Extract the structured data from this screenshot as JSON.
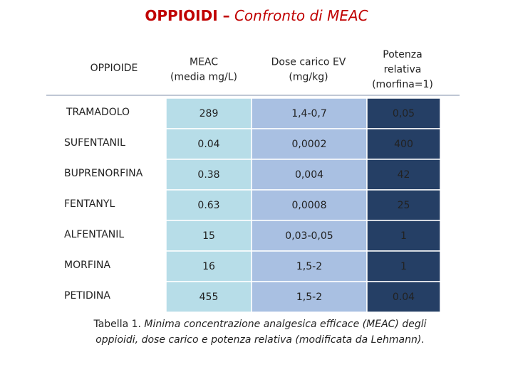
{
  "title": {
    "bold": "OPPIOIDI –",
    "italic": "Confronto di MEAC"
  },
  "table": {
    "header": [
      [
        "OPPIOIDE"
      ],
      [
        "MEAC",
        "(media mg/L)"
      ],
      [
        "Dose carico EV",
        "(mg/kg)"
      ],
      [
        "Potenza",
        "relativa",
        "(morfina=1)"
      ]
    ],
    "rows": [
      [
        "TRAMADOLO",
        "289",
        "1,4-0,7",
        "0,05"
      ],
      [
        "SUFENTANIL",
        "0.04",
        "0,0002",
        "400"
      ],
      [
        "BUPRENORFINA",
        "0.38",
        "0,004",
        "42"
      ],
      [
        "FENTANYL",
        "0.63",
        "0,0008",
        "25"
      ],
      [
        "ALFENTANIL",
        "15",
        "0,03-0,05",
        "1"
      ],
      [
        "MORFINA",
        "16",
        "1,5-2",
        "1"
      ],
      [
        "PETIDINA",
        "455",
        "1,5-2",
        "0.04"
      ]
    ]
  },
  "caption": {
    "label": "Tabella 1.",
    "lines": [
      "Minima concentrazione analgesica efficace (MEAC) degli",
      "oppioidi, dose carico e potenza relativa (modificata da Lehmann)."
    ]
  }
}
